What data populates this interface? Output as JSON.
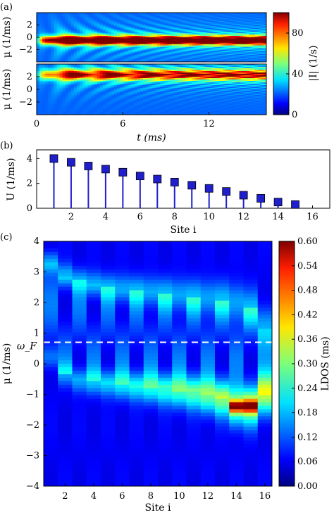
{
  "chart_data": [
    {
      "panel_label": "(a)",
      "type": "heatmap",
      "x_ticks": [
        "0",
        "6",
        "12"
      ],
      "x_tick_values": [
        0,
        6,
        12
      ],
      "xlabel": "t (ms)",
      "xlim": [
        0,
        16
      ],
      "subplots": [
        {
          "ylabel": "μ (1/ms)",
          "ylim": [
            -4,
            4
          ],
          "y_ticks": [
            "2",
            "0",
            "−2"
          ],
          "y_tick_values": [
            2,
            0,
            -2
          ],
          "band_center": -0.5,
          "band_width": 0.7,
          "peak_intensity": 95
        },
        {
          "ylabel": "μ (1/ms)",
          "ylim": [
            -4,
            4
          ],
          "y_ticks": [
            "2",
            "0",
            "−2"
          ],
          "y_tick_values": [
            2,
            0,
            -2
          ],
          "band_center": 2.3,
          "band_width": 0.8,
          "peak_intensity": 60
        }
      ],
      "colorbar": {
        "label": "|I| (1/s)",
        "range": [
          0,
          100
        ],
        "ticks": [
          "80",
          "40",
          "0"
        ],
        "tick_values": [
          80,
          40,
          0
        ]
      }
    },
    {
      "panel_label": "(b)",
      "type": "stem",
      "x": [
        1,
        2,
        3,
        4,
        5,
        6,
        7,
        8,
        9,
        10,
        11,
        12,
        13,
        14,
        15
      ],
      "values": [
        4.0,
        3.7,
        3.4,
        3.15,
        2.9,
        2.6,
        2.35,
        2.1,
        1.85,
        1.6,
        1.35,
        1.05,
        0.8,
        0.5,
        0.3
      ],
      "xlabel": "Site i",
      "ylabel": "U (1/ms)",
      "xlim": [
        0,
        17
      ],
      "ylim": [
        0,
        4.7
      ],
      "x_ticks": [
        "2",
        "4",
        "6",
        "8",
        "10",
        "12",
        "14",
        "16"
      ],
      "x_tick_values": [
        2,
        4,
        6,
        8,
        10,
        12,
        14,
        16
      ],
      "y_ticks": [
        "0",
        "2",
        "4"
      ],
      "y_tick_values": [
        0,
        2,
        4
      ],
      "color": "#1f1fcc"
    },
    {
      "panel_label": "(c)",
      "type": "heatmap",
      "xlabel": "Site i",
      "ylabel": "μ (1/ms)",
      "xlim": [
        0.5,
        16.5
      ],
      "ylim": [
        -4,
        4
      ],
      "x_ticks": [
        "2",
        "4",
        "6",
        "8",
        "10",
        "12",
        "14",
        "16"
      ],
      "x_tick_values": [
        2,
        4,
        6,
        8,
        10,
        12,
        14,
        16
      ],
      "y_ticks": [
        "4",
        "3",
        "2",
        "1",
        "0",
        "−1",
        "−2",
        "−3",
        "−4"
      ],
      "y_tick_values": [
        4,
        3,
        2,
        1,
        0,
        -1,
        -2,
        -3,
        -4
      ],
      "sites": 16,
      "bands": {
        "upper": [
          3.3,
          2.9,
          2.7,
          2.6,
          2.5,
          2.45,
          2.4,
          2.35,
          2.3,
          2.25,
          2.2,
          2.15,
          2.1,
          2.0,
          1.8,
          1.2
        ],
        "lower": [
          0.2,
          -0.35,
          -0.55,
          -0.6,
          -0.65,
          -0.7,
          -0.75,
          -0.8,
          -0.85,
          -0.9,
          -0.95,
          -1.05,
          -1.15,
          -1.4,
          -1.4,
          -1.0
        ]
      },
      "fermi_level": {
        "value": 0.7,
        "label": "ω_F",
        "style": "dashed",
        "color": "#ffffff"
      },
      "colorbar": {
        "label": "LDOS (ms)",
        "range": [
          0,
          0.6
        ],
        "ticks": [
          "0.60",
          "0.54",
          "0.48",
          "0.42",
          "0.36",
          "0.30",
          "0.24",
          "0.18",
          "0.12",
          "0.06",
          "0.00"
        ],
        "tick_values": [
          0.6,
          0.54,
          0.48,
          0.42,
          0.36,
          0.3,
          0.24,
          0.18,
          0.12,
          0.06,
          0.0
        ]
      }
    }
  ]
}
